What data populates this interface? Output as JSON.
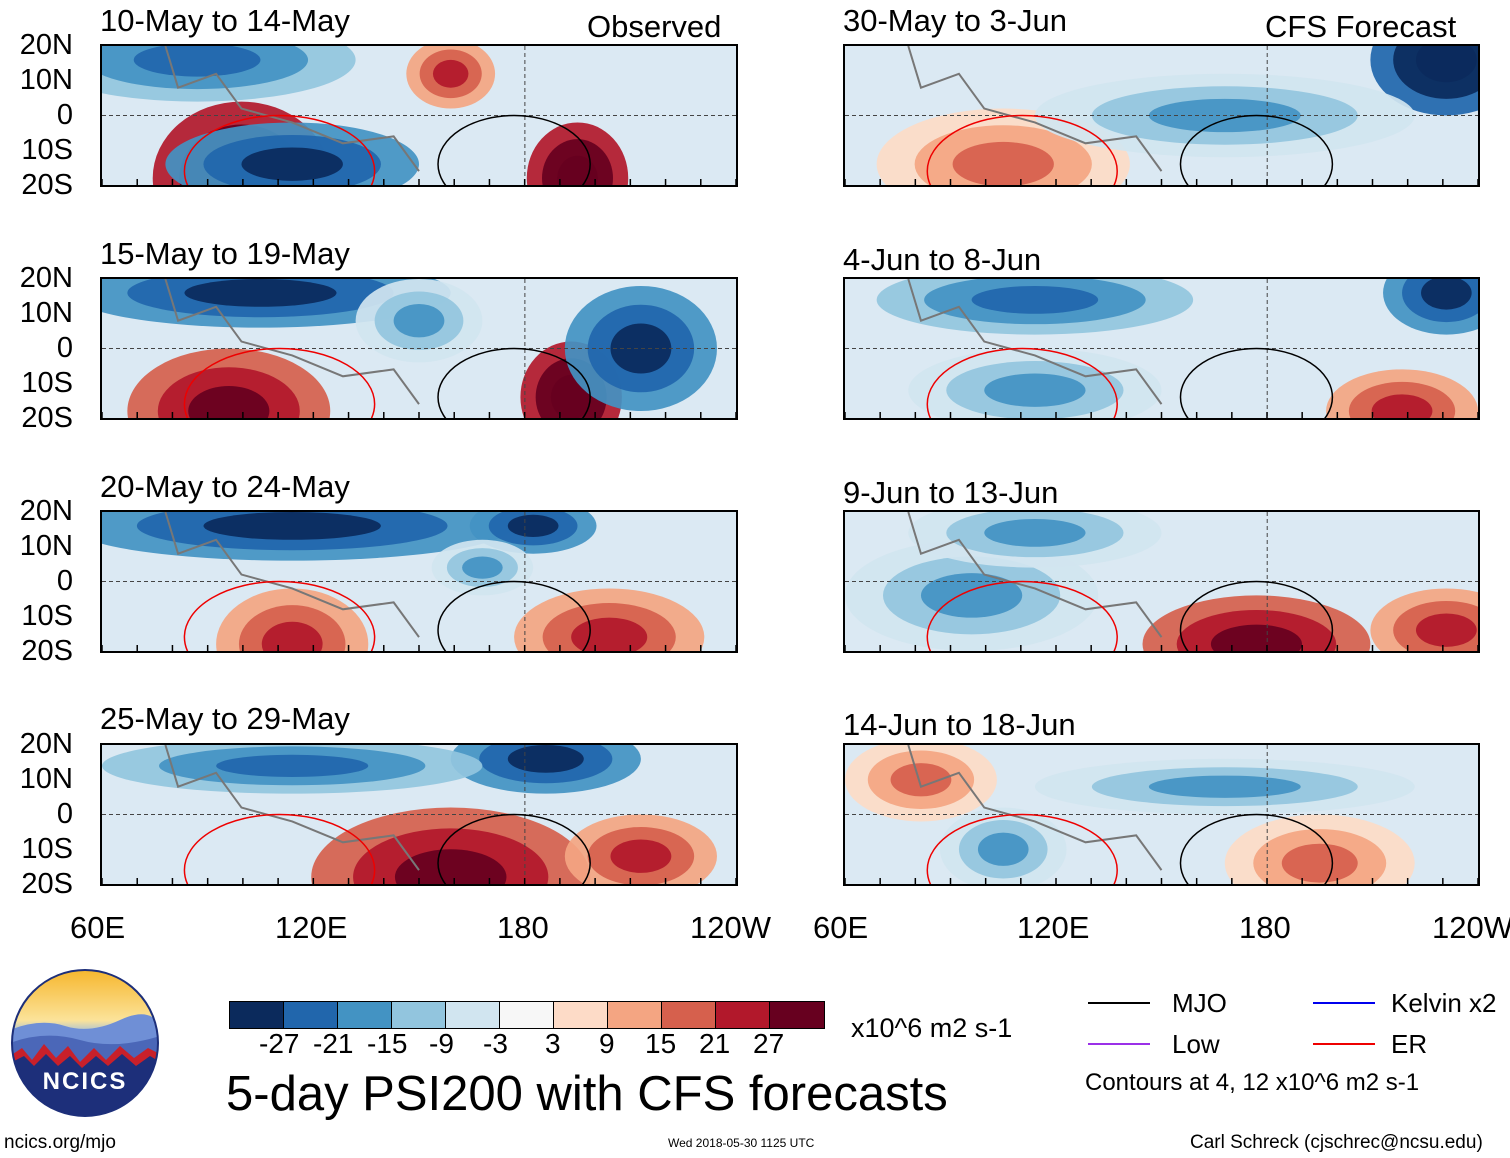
{
  "chart_data": {
    "type": "heatmap",
    "title": "5-day PSI200 with CFS forecasts",
    "variable": "PSI200",
    "units": "x10^6 m2 s-1",
    "xlim": [
      "60E",
      "120W"
    ],
    "ylim": [
      "20S",
      "20N"
    ],
    "x_tick_labels": [
      "60E",
      "120E",
      "180",
      "120W"
    ],
    "y_tick_labels": [
      "20N",
      "10N",
      "0",
      "10S",
      "20S"
    ],
    "colorbar": {
      "levels": [
        "-27",
        "-21",
        "-15",
        "-9",
        "-3",
        "3",
        "9",
        "15",
        "21",
        "27"
      ],
      "colors": [
        "#0b2a5c",
        "#2166ac",
        "#4393c3",
        "#92c5de",
        "#d1e5f0",
        "#f7f7f7",
        "#fddbc7",
        "#f4a582",
        "#d6604d",
        "#b2182b",
        "#67001f"
      ]
    },
    "contour_note": "Contours at 4, 12 x10^6 m2 s-1",
    "legend": [
      {
        "name": "MJO",
        "color": "#000000"
      },
      {
        "name": "Kelvin x2",
        "color": "#0000ee"
      },
      {
        "name": "Low",
        "color": "#9b30e8"
      },
      {
        "name": "ER",
        "color": "#ee0000"
      }
    ],
    "panels": [
      {
        "period": "10-May to 14-May",
        "source": "Observed"
      },
      {
        "period": "15-May to 19-May",
        "source": ""
      },
      {
        "period": "20-May to 24-May",
        "source": ""
      },
      {
        "period": "25-May to 29-May",
        "source": ""
      },
      {
        "period": "30-May to 3-Jun",
        "source": "CFS Forecast"
      },
      {
        "period": "4-Jun to 8-Jun",
        "source": ""
      },
      {
        "period": "9-Jun to 13-Jun",
        "source": ""
      },
      {
        "period": "14-Jun to 18-Jun",
        "source": ""
      }
    ]
  },
  "branding": {
    "logo_text": "NCICS",
    "url": "ncics.org/mjo",
    "timestamp": "Wed 2018-05-30 1125 UTC",
    "author": "Carl Schreck (cjschrec@ncsu.edu)"
  }
}
